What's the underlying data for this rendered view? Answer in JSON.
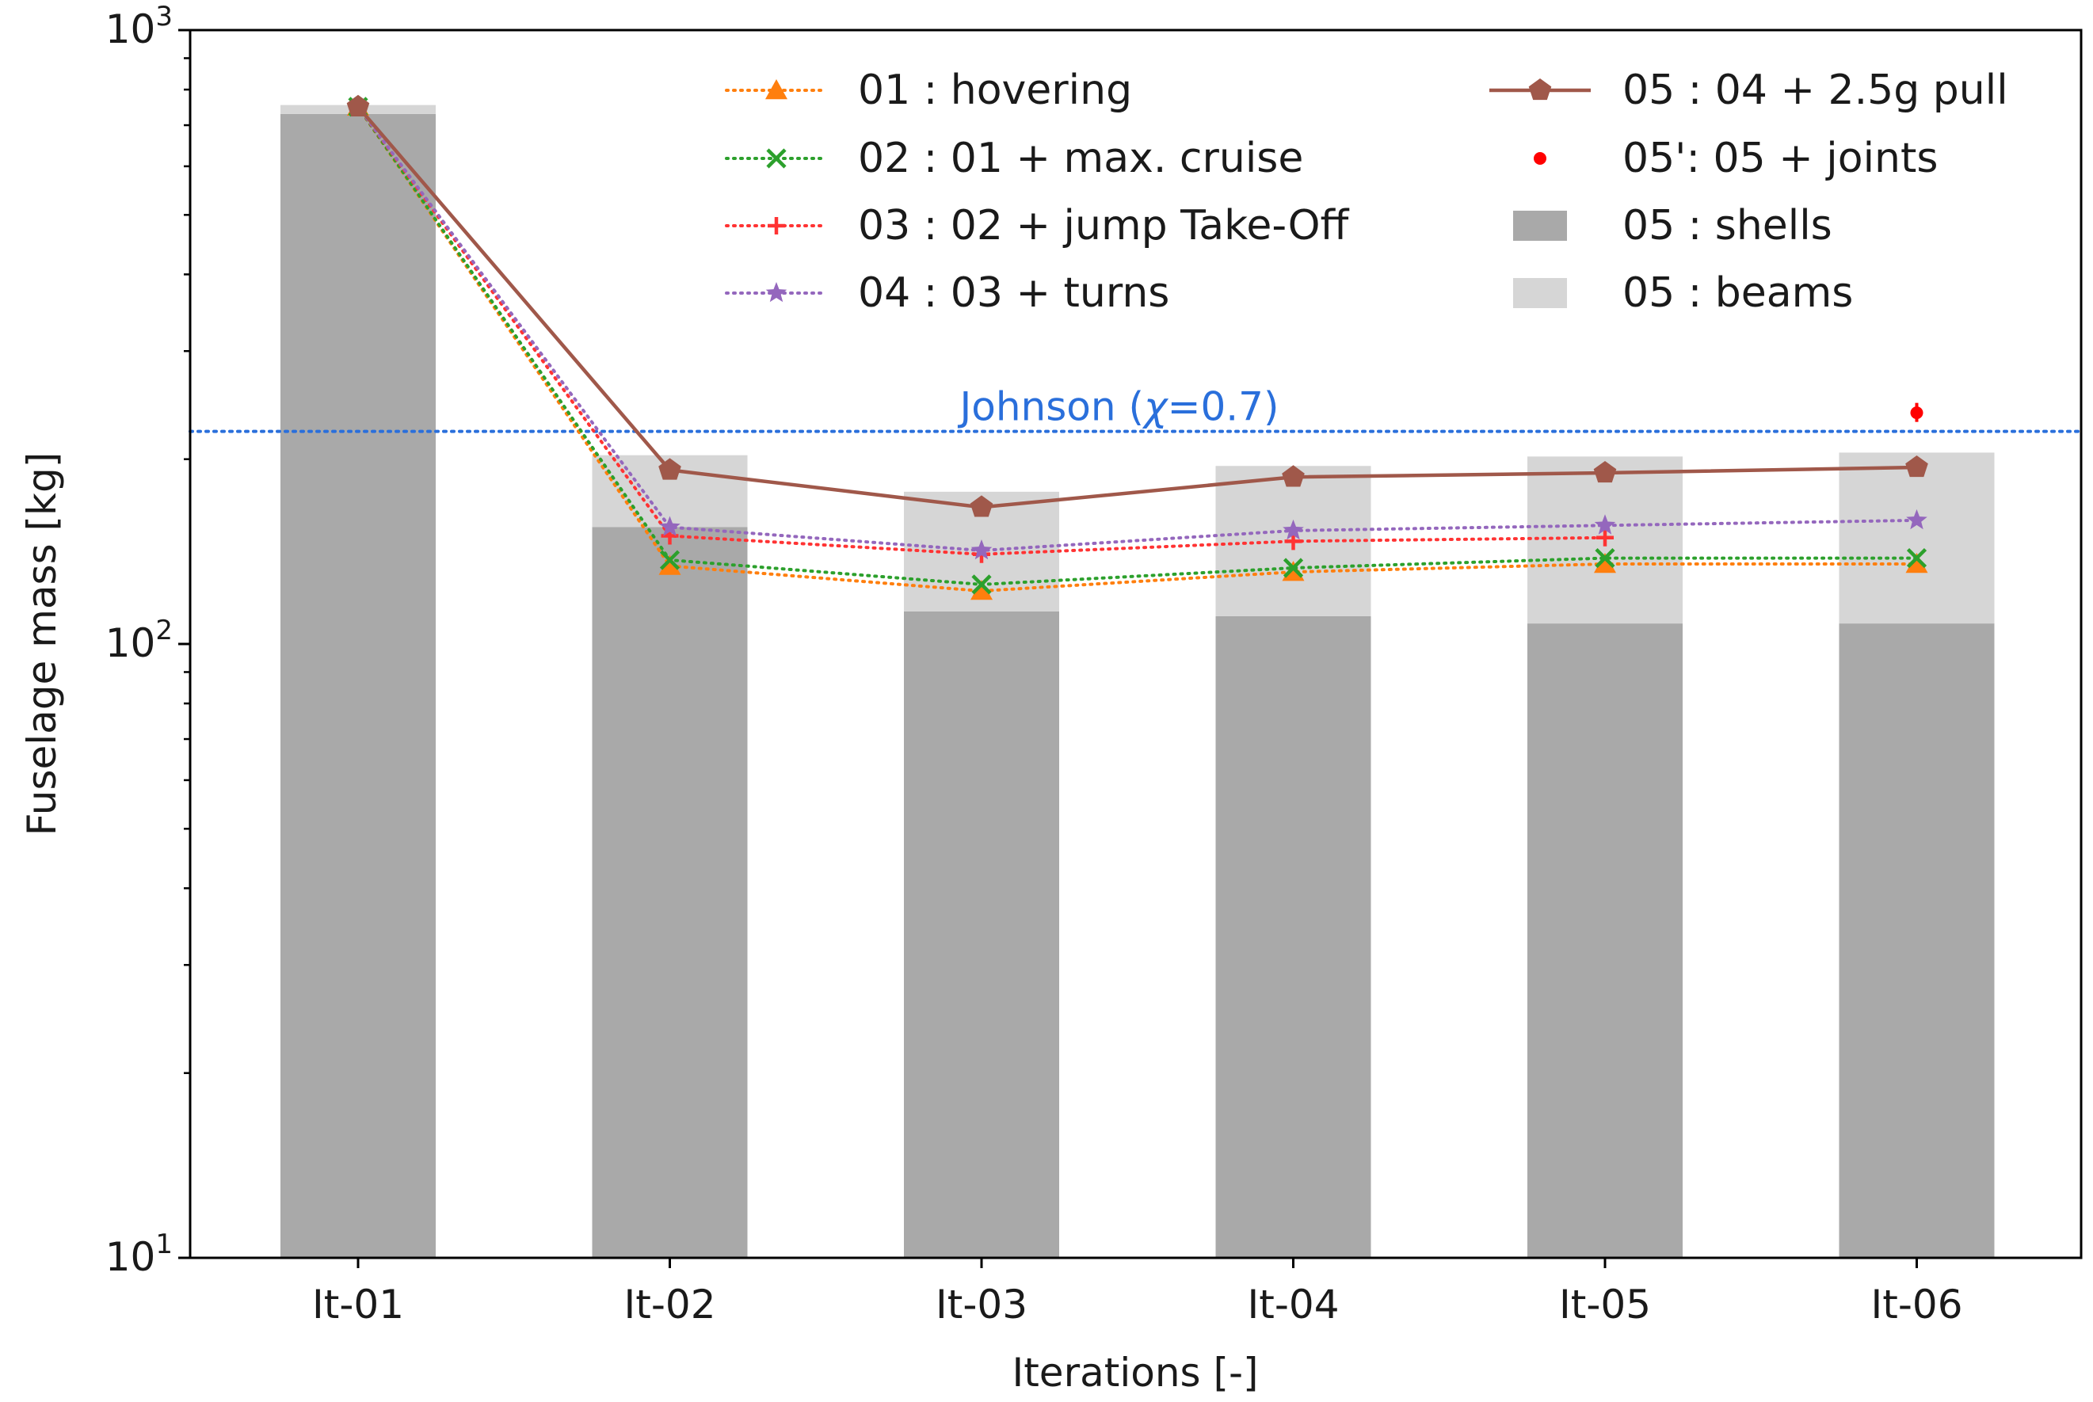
{
  "chart_data": {
    "type": "bar+line",
    "xlabel": "Iterations [-]",
    "ylabel": "Fuselage mass [kg]",
    "yscale": "log",
    "ylim": [
      10,
      1000
    ],
    "yticks": [
      {
        "value": 10,
        "base": "10",
        "exp": "1"
      },
      {
        "value": 100,
        "base": "10",
        "exp": "2"
      },
      {
        "value": 1000,
        "base": "10",
        "exp": "3"
      }
    ],
    "categories": [
      "It-01",
      "It-02",
      "It-03",
      "It-04",
      "It-05",
      "It-06"
    ],
    "bars": [
      {
        "name": "05 : shells",
        "color": "#a9a9a9",
        "values": [
          720,
          145,
          103,
          101,
          98,
          98
        ]
      },
      {
        "name": "05 : beams",
        "color": "#d6d6d6",
        "values": [
          25,
          48,
          64,
          84,
          94,
          97
        ]
      }
    ],
    "series": [
      {
        "name": "01 : hovering",
        "color": "#ff7f0e",
        "line": "dotted",
        "marker": "triangle",
        "values": [
          750,
          134,
          122,
          131,
          135,
          135
        ]
      },
      {
        "name": "02 : 01 + max. cruise",
        "color": "#2ca02c",
        "line": "dotted",
        "marker": "x",
        "values": [
          750,
          137,
          125,
          133,
          138,
          138
        ]
      },
      {
        "name": "03 : 02 + jump Take-Off",
        "color": "#ff3333",
        "line": "dotted",
        "marker": "plus",
        "values": [
          750,
          150,
          140,
          147,
          149,
          null
        ]
      },
      {
        "name": "04 : 03 + turns",
        "color": "#9467bd",
        "line": "dotted",
        "marker": "star",
        "values": [
          750,
          155,
          142,
          153,
          156,
          159
        ]
      },
      {
        "name": "05 : 04 + 2.5g pull",
        "color": "#a0584a",
        "line": "solid",
        "marker": "pentagon",
        "values": [
          750,
          192,
          167,
          187,
          190,
          194
        ]
      }
    ],
    "points": [
      {
        "name": "05': 05 + joints",
        "color": "#ff0000",
        "category": "It-06",
        "value": 238,
        "err_low": 230,
        "err_high": 247
      }
    ],
    "hline": {
      "label_prefix": "Johnson (",
      "label_symbol": "χ",
      "label_suffix": "=0.7)",
      "value": 222,
      "color": "#2a6fdb"
    },
    "legend": {
      "placement": "top-right",
      "columns": 2
    }
  }
}
